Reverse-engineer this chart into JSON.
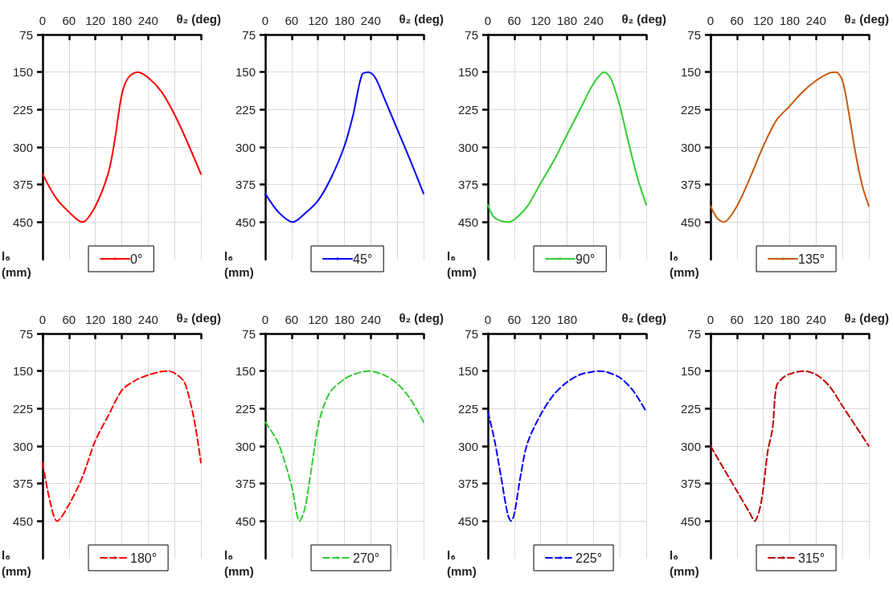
{
  "chart_data": [
    {
      "type": "line",
      "xlabel": "θ₂ (deg)",
      "ylabel": "l₆ (mm)",
      "xlim": [
        0,
        360
      ],
      "xticks": [
        0,
        60,
        120,
        180,
        240,
        {
          "value": 300,
          "label": null
        },
        {
          "value": 360,
          "label": null
        }
      ],
      "ylim": [
        525,
        75
      ],
      "yticks": [
        75,
        150,
        225,
        300,
        375,
        450
      ],
      "grid": true,
      "legend": "bottom",
      "line_style": "solid",
      "series": [
        {
          "name": "0°",
          "color": "#ff0000",
          "x": [
            0,
            30,
            60,
            90,
            120,
            150,
            165,
            180,
            195,
            216,
            240,
            270,
            300,
            330,
            360
          ],
          "values": [
            354,
            401,
            430,
            450,
            418,
            350,
            281,
            195,
            161,
            150,
            161,
            189,
            235,
            292,
            354
          ]
        }
      ]
    },
    {
      "type": "line",
      "xlabel": "θ₂ (deg)",
      "ylabel": "l₆ (mm)",
      "xlim": [
        0,
        360
      ],
      "xticks": [
        0,
        60,
        120,
        180,
        240,
        {
          "value": 300,
          "label": null
        },
        {
          "value": 360,
          "label": null
        }
      ],
      "ylim": [
        525,
        75
      ],
      "yticks": [
        75,
        150,
        225,
        300,
        375,
        450
      ],
      "grid": true,
      "legend": "bottom",
      "line_style": "solid",
      "series": [
        {
          "name": "45°",
          "color": "#0000ff",
          "x": [
            0,
            30,
            63,
            90,
            120,
            150,
            180,
            200,
            220,
            235,
            250,
            270,
            300,
            330,
            360
          ],
          "values": [
            393,
            430,
            450,
            433,
            407,
            361,
            298,
            235,
            155,
            150,
            161,
            201,
            264,
            327,
            393
          ]
        }
      ]
    },
    {
      "type": "line",
      "xlabel": "θ₂ (deg)",
      "ylabel": "l₆ (mm)",
      "xlim": [
        0,
        360
      ],
      "xticks": [
        0,
        60,
        120,
        180,
        240,
        {
          "value": 300,
          "label": null
        },
        {
          "value": 360,
          "label": null
        }
      ],
      "ylim": [
        525,
        75
      ],
      "yticks": [
        75,
        150,
        225,
        300,
        375,
        450
      ],
      "grid": true,
      "legend": "bottom",
      "line_style": "solid",
      "series": [
        {
          "name": "90°",
          "color": "#33cc33",
          "x": [
            0,
            15,
            45,
            60,
            90,
            120,
            150,
            180,
            210,
            240,
            265,
            280,
            300,
            320,
            340,
            360
          ],
          "values": [
            415,
            441,
            450,
            445,
            418,
            372,
            327,
            275,
            224,
            173,
            150,
            164,
            218,
            292,
            361,
            415
          ]
        }
      ]
    },
    {
      "type": "line",
      "xlabel": "θ₂ (deg)",
      "ylabel": "l₆ (mm)",
      "xlim": [
        0,
        360
      ],
      "xticks": [
        0,
        60,
        120,
        180,
        240,
        {
          "value": 300,
          "label": null
        },
        {
          "value": 360,
          "label": null
        }
      ],
      "ylim": [
        525,
        75
      ],
      "yticks": [
        75,
        150,
        225,
        300,
        375,
        450
      ],
      "grid": true,
      "legend": "bottom",
      "line_style": "solid",
      "series": [
        {
          "name": "135°",
          "color": "#c65911",
          "x": [
            0,
            15,
            30,
            60,
            90,
            120,
            150,
            180,
            210,
            240,
            270,
            285,
            300,
            315,
            330,
            345,
            360
          ],
          "values": [
            418,
            442,
            450,
            418,
            361,
            298,
            246,
            218,
            189,
            167,
            152,
            150,
            167,
            235,
            314,
            377,
            418
          ]
        }
      ]
    },
    {
      "type": "line",
      "xlabel": "θ₂ (deg)",
      "ylabel": "l₆ (mm)",
      "xlim": [
        0,
        360
      ],
      "xticks": [
        0,
        60,
        120,
        180,
        240,
        {
          "value": 300,
          "label": null
        },
        {
          "value": 360,
          "label": null
        }
      ],
      "ylim": [
        525,
        75
      ],
      "yticks": [
        75,
        150,
        225,
        300,
        375,
        450
      ],
      "grid": true,
      "legend": "bottom",
      "line_style": "dashed",
      "series": [
        {
          "name": "180°",
          "color": "#ff0000",
          "x": [
            0,
            15,
            33,
            60,
            90,
            120,
            150,
            180,
            210,
            240,
            270,
            285,
            300,
            320,
            330,
            345,
            360
          ],
          "values": [
            333,
            403,
            450,
            417,
            363,
            289,
            238,
            189,
            169,
            158,
            151,
            150,
            154,
            169,
            192,
            249,
            333
          ]
        }
      ]
    },
    {
      "type": "line",
      "xlabel": "θ₂ (deg)",
      "ylabel": "l₆ (mm)",
      "xlim": [
        0,
        360
      ],
      "xticks": [
        0,
        60,
        120,
        180,
        240,
        {
          "value": 300,
          "label": null
        },
        {
          "value": 360,
          "label": null
        }
      ],
      "ylim": [
        525,
        75
      ],
      "yticks": [
        75,
        150,
        225,
        300,
        375,
        450
      ],
      "grid": true,
      "legend": "bottom",
      "line_style": "dashed",
      "series": [
        {
          "name": "270°",
          "color": "#33cc33",
          "x": [
            0,
            30,
            60,
            78,
            90,
            105,
            120,
            135,
            150,
            180,
            210,
            235,
            270,
            300,
            330,
            360
          ],
          "values": [
            252,
            295,
            380,
            450,
            425,
            345,
            260,
            215,
            189,
            166,
            154,
            150,
            158,
            175,
            206,
            252
          ]
        }
      ]
    },
    {
      "type": "line",
      "xlabel": "θ₂ (deg)",
      "ylabel": "l₆ (mm)",
      "xlim": [
        0,
        360
      ],
      "xticks": [
        0,
        60,
        120,
        180,
        {
          "value": 240,
          "label": null
        },
        {
          "value": 300,
          "label": null
        },
        {
          "value": 360,
          "label": null
        }
      ],
      "ylim": [
        525,
        75
      ],
      "yticks": [
        75,
        150,
        225,
        300,
        375,
        450
      ],
      "grid": true,
      "legend": "bottom",
      "line_style": "dashed",
      "series": [
        {
          "name": "225°",
          "color": "#0000ff",
          "x": [
            0,
            15,
            30,
            45,
            53,
            60,
            75,
            90,
            120,
            150,
            180,
            210,
            240,
            255,
            270,
            300,
            330,
            360
          ],
          "values": [
            231,
            288,
            362,
            436,
            450,
            436,
            356,
            294,
            237,
            197,
            172,
            157,
            151,
            150,
            152,
            163,
            189,
            231
          ]
        }
      ]
    },
    {
      "type": "line",
      "xlabel": "θ₂ (deg)",
      "ylabel": "l₆ (mm)",
      "xlim": [
        0,
        360
      ],
      "xticks": [
        0,
        60,
        120,
        180,
        240,
        {
          "value": 300,
          "label": null
        },
        {
          "value": 360,
          "label": null
        }
      ],
      "ylim": [
        525,
        75
      ],
      "yticks": [
        75,
        150,
        225,
        300,
        375,
        450
      ],
      "grid": true,
      "legend": "bottom",
      "line_style": "dashed",
      "series": [
        {
          "name": "315°",
          "color": "#c00000",
          "x": [
            0,
            30,
            60,
            90,
            100,
            115,
            130,
            141,
            150,
            165,
            180,
            210,
            240,
            270,
            300,
            330,
            360
          ],
          "values": [
            300,
            345,
            390,
            435,
            450,
            413,
            311,
            265,
            180,
            163,
            156,
            150,
            157,
            180,
            220,
            260,
            300
          ]
        }
      ]
    }
  ]
}
